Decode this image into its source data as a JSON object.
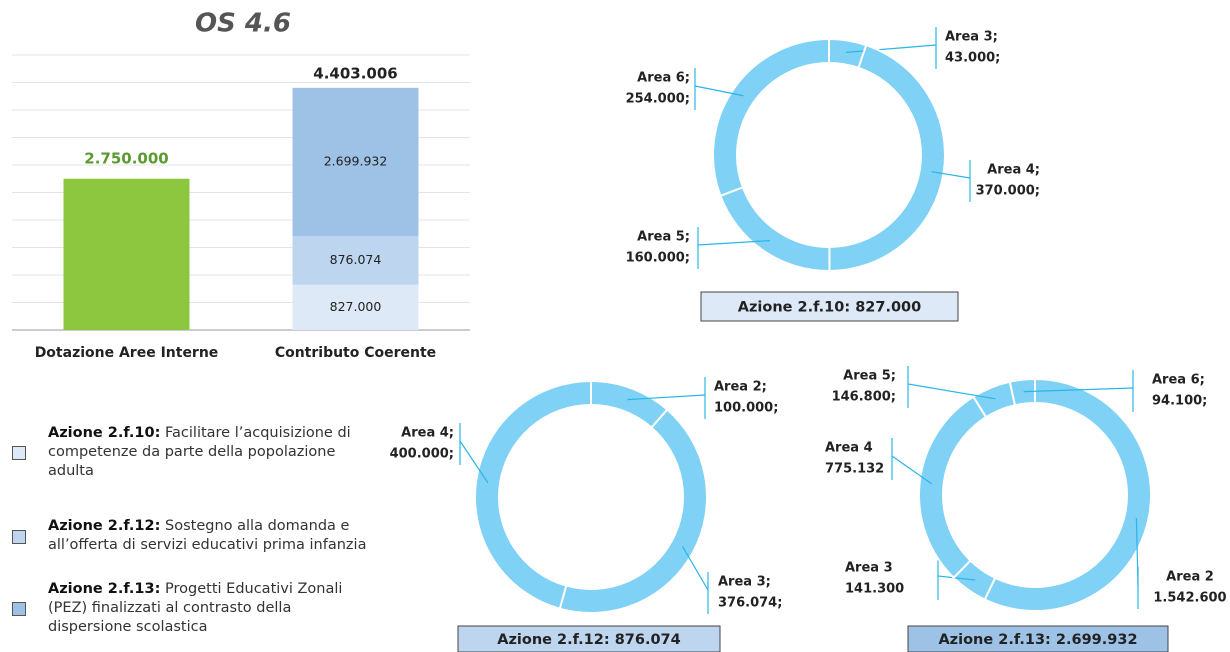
{
  "chart_data": [
    {
      "type": "bar",
      "stacked": true,
      "title": "OS 4.6",
      "categories": [
        "Dotazione Aree Interne",
        "Contributo Coerente"
      ],
      "ylim": [
        0,
        5000000
      ],
      "yticks": [
        0,
        500000,
        1000000,
        1500000,
        2000000,
        2500000,
        3000000,
        3500000,
        4000000,
        4500000,
        5000000
      ],
      "grid": true,
      "series": [
        {
          "color": "#8dc63f",
          "label_color": "#5b9a2e",
          "values": [
            2750000,
            null
          ],
          "value_labels": [
            "2.750.000",
            null
          ]
        },
        {
          "name": "Azione 2.f.10:",
          "description": "Facilitare l’acquisizione di competenze da parte della popolazione adulta",
          "color": "#dde9f6",
          "values": [
            null,
            827000
          ],
          "value_labels": [
            null,
            "827.000"
          ]
        },
        {
          "name": "Azione 2.f.12:",
          "description": "Sostegno alla domanda e all’offerta di servizi educativi prima infanzia",
          "color": "#bdd5ef",
          "values": [
            null,
            876074
          ],
          "value_labels": [
            null,
            "876.074"
          ]
        },
        {
          "name": "Azione 2.f.13:",
          "description": "Progetti Educativi Zonali (PEZ) finalizzati al contrasto della dispersione scolastica",
          "color": "#9dc2e6",
          "values": [
            null,
            2699932
          ],
          "value_labels": [
            null,
            "2.699.932"
          ]
        }
      ],
      "totals": [
        null,
        4403006
      ],
      "total_labels": [
        null,
        "4.403.006"
      ]
    },
    {
      "type": "donut",
      "title": "Azione 2.f.10:  827.000",
      "title_box_color": "#dde9f6",
      "color": "#7fd1f5",
      "categories": [
        "Area 3;",
        "Area 4;",
        "Area 5;",
        "Area 6;"
      ],
      "values": [
        43000,
        370000,
        160000,
        254000
      ],
      "value_labels": [
        "43.000;",
        "370.000;",
        "160.000;",
        "254.000;"
      ]
    },
    {
      "type": "donut",
      "title": "Azione 2.f.12:  876.074",
      "title_box_color": "#bdd5ef",
      "color": "#7fd1f5",
      "categories": [
        "Area 2;",
        "Area 3;",
        "Area 4;"
      ],
      "values": [
        100000,
        376074,
        400000
      ],
      "value_labels": [
        "100.000;",
        "376.074;",
        "400.000;"
      ]
    },
    {
      "type": "donut",
      "title": "Azione 2.f.13:  2.699.932",
      "title_box_color": "#9dc2e6",
      "color": "#7fd1f5",
      "categories": [
        "Area 2",
        "Area 3",
        "Area 4",
        "Area 5;",
        "Area 6;"
      ],
      "values": [
        1542600,
        141300,
        775132,
        146800,
        94100
      ],
      "value_labels": [
        "1.542.600",
        "141.300",
        "775.132",
        "146.800;",
        "94.100;"
      ]
    }
  ]
}
